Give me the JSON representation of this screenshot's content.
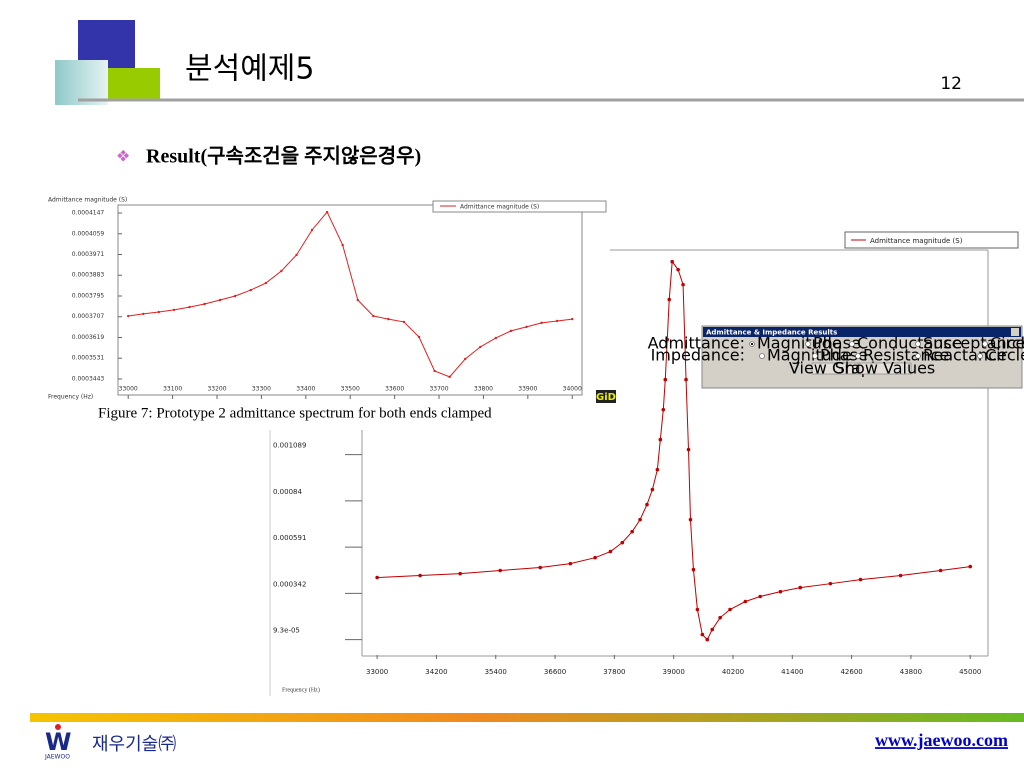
{
  "header": {
    "title": "분석예제5",
    "page_number": "12",
    "bullet": "Result(구속조건을 주지않은경우)"
  },
  "chart_data": [
    {
      "type": "line",
      "ylabel": "Admittance magnitude (S)",
      "xlabel": "Frequency (Hz)",
      "caption": "Figure 7: Prototype 2 admittance spectrum for both ends clamped",
      "logo": "GiD",
      "x": [
        33000,
        33034,
        33069,
        33103,
        33138,
        33172,
        33207,
        33241,
        33276,
        33310,
        33345,
        33379,
        33414,
        33448,
        33483,
        33517,
        33552,
        33586,
        33621,
        33655,
        33690,
        33724,
        33759,
        33793,
        33828,
        33862,
        33897,
        33931,
        33966,
        34000
      ],
      "series": [
        {
          "name": "Admittance magnitude (S)",
          "color": "#e02020",
          "values": [
            0.000371,
            0.0003719,
            0.0003727,
            0.0003736,
            0.0003748,
            0.0003761,
            0.0003778,
            0.0003795,
            0.000382,
            0.000385,
            0.0003901,
            0.0003969,
            0.0004075,
            0.0004151,
            0.0004011,
            0.0003778,
            0.000371,
            0.0003697,
            0.0003685,
            0.0003621,
            0.0003477,
            0.0003452,
            0.0003528,
            0.0003579,
            0.0003617,
            0.0003647,
            0.0003664,
            0.0003681,
            0.0003689,
            0.0003697
          ]
        }
      ],
      "xlim": [
        32977,
        34022
      ],
      "ylim": [
        0.0003375,
        0.0004181
      ],
      "xticks": [
        33000,
        33100,
        33200,
        33300,
        33400,
        33500,
        33600,
        33700,
        33800,
        33900,
        34000
      ],
      "yticks": [
        0.0003443,
        0.0003531,
        0.0003619,
        0.0003707,
        0.0003795,
        0.0003883,
        0.0003971,
        0.0004059,
        0.0004147
      ]
    },
    {
      "type": "line",
      "xlabel": "Frequency (Hz)",
      "x": [
        33000,
        33870,
        34680,
        35490,
        36300,
        36910,
        37410,
        37720,
        37960,
        38160,
        38320,
        38460,
        38570,
        38670,
        38730,
        38790,
        38830,
        38870,
        38910,
        38970,
        39090,
        39190,
        39250,
        39300,
        39340,
        39400,
        39480,
        39580,
        39680,
        39780,
        39940,
        40140,
        40450,
        40750,
        41160,
        41560,
        42170,
        42780,
        43590,
        44400,
        45000
      ],
      "series": [
        {
          "name": "Admittance magnitude (S)",
          "color": "#c00000",
          "values": [
            0.000427,
            0.000438,
            0.000448,
            0.000465,
            0.000481,
            0.000502,
            0.000534,
            0.000567,
            0.000615,
            0.000674,
            0.000739,
            0.00082,
            0.000901,
            0.001008,
            0.00117,
            0.001331,
            0.001493,
            0.001708,
            0.001924,
            0.002128,
            0.002085,
            0.002004,
            0.001493,
            0.001116,
            0.000739,
            0.00047,
            0.000255,
            0.00012,
            9.3e-05,
            0.000147,
            0.000211,
            0.000255,
            0.000298,
            0.000325,
            0.000351,
            0.000373,
            0.000394,
            0.000416,
            0.000438,
            0.000465,
            0.000486
          ]
        }
      ],
      "xlim": [
        32350,
        45400
      ],
      "ylim": [
        1e-05,
        0.00225
      ],
      "xticks": [
        33000,
        34200,
        35400,
        36600,
        37800,
        39000,
        40200,
        41400,
        42600,
        43800,
        45000
      ],
      "yticks": [
        {
          "value": 9.3e-05,
          "label": "9.3e-05"
        },
        0.000342,
        0.000591,
        0.00084,
        0.001089
      ]
    }
  ],
  "dialog": {
    "title": "Admittance & Impedance Results",
    "rows": [
      {
        "label": "Admittance:",
        "options": [
          "Magnitude",
          "Phase",
          "Conductance",
          "Susceptance",
          "Circle"
        ]
      },
      {
        "label": "Impedance:",
        "options": [
          "Magnitude",
          "Phase",
          "Resistance",
          "Reactance",
          "Circle"
        ]
      }
    ],
    "buttons": [
      "View Graph",
      "Show Values"
    ]
  },
  "footer": {
    "company": "재우기술㈜",
    "logo_text": "JAEWOO",
    "url": "www.jaewoo.com"
  }
}
